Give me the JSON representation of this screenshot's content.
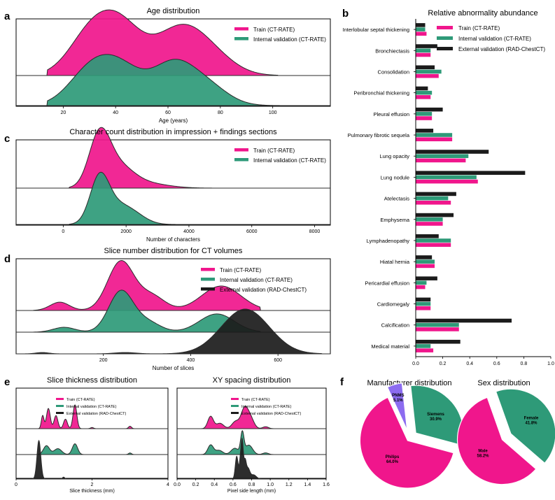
{
  "colors": {
    "train": "#f0168c",
    "internal": "#2e9a78",
    "external": "#1b1b1b",
    "pnms": "#8c6cf0",
    "ridge_line": "#2b2b2b"
  },
  "panel_letters": {
    "a": "a",
    "b": "b",
    "c": "c",
    "d": "d",
    "e": "e",
    "f": "f"
  },
  "legend": {
    "train": "Train (CT-RATE)",
    "internal": "Internal validation (CT-RATE)",
    "external": "External validation (RAD-ChestCT)"
  },
  "chart_data": [
    {
      "id": "a",
      "type": "area",
      "title": "Age distribution",
      "xlabel": "Age (years)",
      "xlim": [
        2,
        122
      ],
      "xticks": [
        20,
        40,
        60,
        80,
        100
      ],
      "series": [
        {
          "name": "Train (CT-RATE)",
          "peaks": [
            [
              29,
              8,
              0.55
            ],
            [
              41,
              9,
              0.95
            ],
            [
              64,
              9,
              0.75
            ],
            [
              76,
              9,
              0.35
            ]
          ],
          "range": [
            14,
            102
          ]
        },
        {
          "name": "Internal validation (CT-RATE)",
          "peaks": [
            [
              29,
              8,
              0.5
            ],
            [
              41,
              9,
              0.75
            ],
            [
              62,
              8,
              0.75
            ],
            [
              75,
              8,
              0.35
            ]
          ],
          "range": [
            14,
            104
          ]
        }
      ]
    },
    {
      "id": "c",
      "type": "area",
      "title": "Character count distribution in impression + findings sections",
      "xlabel": "Number of characters",
      "xlim": [
        -1500,
        8500
      ],
      "xticks": [
        0,
        2000,
        4000,
        6000,
        8000
      ],
      "series": [
        {
          "name": "Train (CT-RATE)",
          "peaks": [
            [
              1150,
              330,
              1.0
            ],
            [
              1700,
              500,
              0.45
            ],
            [
              2600,
              700,
              0.1
            ]
          ],
          "range": [
            200,
            6000
          ]
        },
        {
          "name": "Internal validation (CT-RATE)",
          "peaks": [
            [
              1150,
              300,
              1.0
            ],
            [
              1700,
              450,
              0.4
            ],
            [
              2300,
              400,
              0.15
            ]
          ],
          "range": [
            200,
            5500
          ]
        }
      ]
    },
    {
      "id": "d",
      "type": "area",
      "title": "Slice number distribution for CT volumes",
      "xlabel": "Number of slices",
      "xlim": [
        0,
        720
      ],
      "xticks": [
        200,
        400,
        600
      ],
      "series": [
        {
          "name": "Train (CT-RATE)",
          "peaks": [
            [
              100,
              22,
              0.17
            ],
            [
              240,
              30,
              1.0
            ],
            [
              310,
              30,
              0.3
            ],
            [
              470,
              45,
              0.5
            ]
          ],
          "range": [
            40,
            560
          ]
        },
        {
          "name": "Internal validation (CT-RATE)",
          "peaks": [
            [
              110,
              25,
              0.12
            ],
            [
              240,
              28,
              1.0
            ],
            [
              300,
              30,
              0.25
            ],
            [
              460,
              40,
              0.45
            ]
          ],
          "range": [
            40,
            560
          ]
        },
        {
          "name": "External validation (RAD-ChestCT)",
          "peaks": [
            [
              60,
              15,
              0.03
            ],
            [
              250,
              25,
              0.03
            ],
            [
              525,
              55,
              1.0
            ]
          ],
          "range": [
            20,
            700
          ]
        }
      ]
    },
    {
      "id": "e1",
      "type": "area",
      "title": "Slice thickness distribution",
      "xlabel": "Slice thickness (mm)",
      "xlim": [
        0,
        4
      ],
      "xticks": [
        0,
        2,
        4
      ],
      "series": [
        {
          "name": "Train (CT-RATE)",
          "peaks": [
            [
              0.7,
              0.035,
              0.55
            ],
            [
              0.85,
              0.05,
              0.85
            ],
            [
              1.05,
              0.05,
              0.55
            ],
            [
              1.3,
              0.05,
              0.4
            ],
            [
              1.55,
              0.05,
              1.0
            ],
            [
              2.0,
              0.04,
              0.05
            ],
            [
              3.0,
              0.04,
              0.1
            ]
          ],
          "range": [
            0.5,
            3.2
          ]
        },
        {
          "name": "Internal validation (CT-RATE)",
          "peaks": [
            [
              0.8,
              0.08,
              0.45
            ],
            [
              1.1,
              0.1,
              0.3
            ],
            [
              1.55,
              0.07,
              0.55
            ],
            [
              3.0,
              0.04,
              0.08
            ]
          ],
          "range": [
            0.5,
            3.2
          ]
        },
        {
          "name": "External validation (RAD-ChestCT)",
          "peaks": [
            [
              0.6,
              0.05,
              1.0
            ],
            [
              1.25,
              0.03,
              0.05
            ]
          ],
          "range": [
            0.4,
            1.4
          ]
        }
      ]
    },
    {
      "id": "e2",
      "type": "area",
      "title": "XY spacing distribution",
      "xlabel": "Pixel side length (mm)",
      "xlim": [
        0,
        1.6
      ],
      "xticks": [
        0.0,
        0.2,
        0.4,
        0.6,
        0.8,
        1.0,
        1.2,
        1.4,
        1.6
      ],
      "series": [
        {
          "name": "Train (CT-RATE)",
          "peaks": [
            [
              0.36,
              0.03,
              0.5
            ],
            [
              0.46,
              0.04,
              0.22
            ],
            [
              0.63,
              0.04,
              0.3
            ],
            [
              0.72,
              0.035,
              0.7
            ],
            [
              0.78,
              0.04,
              0.5
            ],
            [
              0.95,
              0.03,
              0.08
            ]
          ],
          "range": [
            0.25,
            1.1
          ]
        },
        {
          "name": "Internal validation (CT-RATE)",
          "peaks": [
            [
              0.36,
              0.03,
              0.45
            ],
            [
              0.45,
              0.04,
              0.2
            ],
            [
              0.62,
              0.04,
              0.3
            ],
            [
              0.7,
              0.018,
              1.0
            ],
            [
              0.77,
              0.04,
              0.45
            ],
            [
              0.95,
              0.03,
              0.08
            ]
          ],
          "range": [
            0.25,
            1.1
          ]
        },
        {
          "name": "External validation (RAD-ChestCT)",
          "peaks": [
            [
              0.64,
              0.015,
              0.65
            ],
            [
              0.68,
              0.012,
              0.5
            ],
            [
              0.7,
              0.012,
              1.0
            ],
            [
              0.73,
              0.012,
              0.45
            ],
            [
              0.76,
              0.02,
              0.3
            ],
            [
              0.82,
              0.03,
              0.12
            ]
          ],
          "range": [
            0.55,
            0.95
          ]
        }
      ]
    },
    {
      "id": "b",
      "type": "bar",
      "orientation": "horizontal",
      "title": "Relative abnormality abundance",
      "xlim": [
        0,
        1.0
      ],
      "xticks": [
        "0.0",
        "0.2",
        "0.4",
        "0.6",
        "0.8",
        "1.0"
      ],
      "categories": [
        "Interlobular septal thickening",
        "Bronchiectasis",
        "Consolidation",
        "Peribronchial thickening",
        "Pleural effusion",
        "Pulmonary fibrotic sequela",
        "Lung opacity",
        "Lung nodule",
        "Atelectasis",
        "Emphysema",
        "Lymphadenopathy",
        "Hiatal hernia",
        "Pericardial effusion",
        "Cardiomegaly",
        "Calcification",
        "Medical material"
      ],
      "series": [
        {
          "name": "External validation (RAD-ChestCT)",
          "values": [
            0.07,
            0.16,
            0.14,
            0.09,
            0.2,
            0.13,
            0.54,
            0.81,
            0.3,
            0.28,
            0.17,
            0.12,
            0.16,
            0.11,
            0.71,
            0.33
          ]
        },
        {
          "name": "Internal validation (CT-RATE)",
          "values": [
            0.07,
            0.11,
            0.19,
            0.12,
            0.12,
            0.27,
            0.39,
            0.45,
            0.24,
            0.2,
            0.26,
            0.14,
            0.08,
            0.11,
            0.32,
            0.11
          ]
        },
        {
          "name": "Train (CT-RATE)",
          "values": [
            0.08,
            0.11,
            0.17,
            0.11,
            0.12,
            0.27,
            0.37,
            0.46,
            0.26,
            0.2,
            0.26,
            0.14,
            0.07,
            0.11,
            0.32,
            0.13
          ]
        }
      ]
    },
    {
      "id": "f1",
      "type": "pie",
      "title": "Manufacturer distribution",
      "slices": [
        {
          "label": "Philips",
          "pct_text": "64.0%",
          "value": 64.0,
          "color_key": "train"
        },
        {
          "label": "PNMS",
          "pct_text": "5.1%",
          "value": 5.1,
          "color_key": "pnms"
        },
        {
          "label": "Siemens",
          "pct_text": "30.9%",
          "value": 30.9,
          "color_key": "internal"
        }
      ]
    },
    {
      "id": "f2",
      "type": "pie",
      "title": "Sex distribution",
      "slices": [
        {
          "label": "Male",
          "pct_text": "58.2%",
          "value": 58.2,
          "color_key": "train"
        },
        {
          "label": "Female",
          "pct_text": "41.8%",
          "value": 41.8,
          "color_key": "internal"
        }
      ]
    }
  ]
}
